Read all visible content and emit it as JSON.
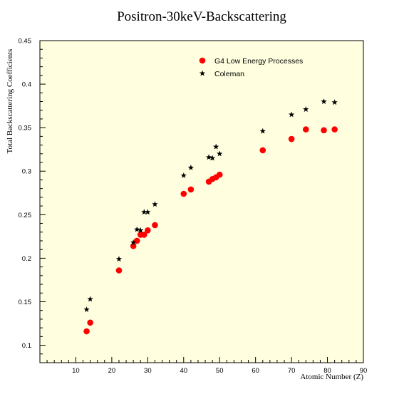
{
  "chart_data": {
    "type": "scatter",
    "title": "Positron-30keV-Backscattering",
    "xlabel": "Atomic Number (Z)",
    "ylabel": "Total Backscattering Coefficients",
    "xlim": [
      0,
      90
    ],
    "ylim": [
      0.08,
      0.45
    ],
    "x_ticks": [
      10,
      20,
      30,
      40,
      50,
      60,
      70,
      80,
      90
    ],
    "y_ticks": [
      0.1,
      0.15,
      0.2,
      0.25,
      0.3,
      0.35,
      0.4,
      0.45
    ],
    "grid": false,
    "legend_placement": "top-right",
    "background_color": "#ffffe0",
    "series": [
      {
        "name": "G4 Low Energy Processes",
        "marker": "circle",
        "color": "#ff0000",
        "points": [
          [
            13,
            0.116
          ],
          [
            14,
            0.126
          ],
          [
            22,
            0.186
          ],
          [
            26,
            0.214
          ],
          [
            27,
            0.22
          ],
          [
            28,
            0.227
          ],
          [
            29,
            0.227
          ],
          [
            30,
            0.232
          ],
          [
            32,
            0.238
          ],
          [
            40,
            0.274
          ],
          [
            42,
            0.279
          ],
          [
            47,
            0.288
          ],
          [
            48,
            0.291
          ],
          [
            49,
            0.293
          ],
          [
            50,
            0.296
          ],
          [
            62,
            0.324
          ],
          [
            70,
            0.337
          ],
          [
            74,
            0.348
          ],
          [
            79,
            0.347
          ],
          [
            82,
            0.348
          ]
        ]
      },
      {
        "name": "Coleman",
        "marker": "star",
        "color": "#000000",
        "points": [
          [
            13,
            0.141
          ],
          [
            14,
            0.153
          ],
          [
            22,
            0.199
          ],
          [
            26,
            0.218
          ],
          [
            27,
            0.233
          ],
          [
            28,
            0.232
          ],
          [
            29,
            0.253
          ],
          [
            30,
            0.253
          ],
          [
            32,
            0.262
          ],
          [
            40,
            0.295
          ],
          [
            42,
            0.304
          ],
          [
            47,
            0.316
          ],
          [
            48,
            0.315
          ],
          [
            49,
            0.328
          ],
          [
            50,
            0.32
          ],
          [
            62,
            0.346
          ],
          [
            70,
            0.365
          ],
          [
            74,
            0.371
          ],
          [
            79,
            0.38
          ],
          [
            82,
            0.379
          ]
        ]
      }
    ]
  }
}
